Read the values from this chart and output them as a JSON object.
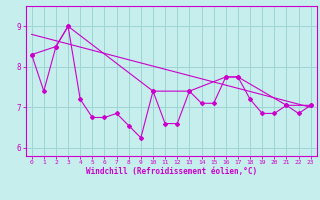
{
  "xlabel": "Windchill (Refroidissement éolien,°C)",
  "xlim": [
    -0.5,
    23.5
  ],
  "ylim": [
    5.8,
    9.5
  ],
  "yticks": [
    6,
    7,
    8,
    9
  ],
  "xticks": [
    0,
    1,
    2,
    3,
    4,
    5,
    6,
    7,
    8,
    9,
    10,
    11,
    12,
    13,
    14,
    15,
    16,
    17,
    18,
    19,
    20,
    21,
    22,
    23
  ],
  "bg_color": "#c5eeed",
  "line_color": "#cc00cc",
  "grid_color": "#9dd4d4",
  "line1": {
    "x": [
      0,
      1,
      2,
      3,
      4,
      5,
      6,
      7,
      8,
      9,
      10,
      11,
      12,
      13,
      14,
      15,
      16,
      17,
      18,
      19,
      20,
      21,
      22,
      23
    ],
    "y": [
      8.3,
      7.4,
      8.5,
      9.0,
      7.2,
      6.75,
      6.75,
      6.85,
      6.55,
      6.25,
      7.4,
      6.6,
      6.6,
      7.4,
      7.1,
      7.1,
      7.75,
      7.75,
      7.2,
      6.85,
      6.85,
      7.05,
      6.85,
      7.05
    ]
  },
  "line2": {
    "x": [
      0,
      2,
      3,
      10,
      13,
      16,
      17,
      21,
      23
    ],
    "y": [
      8.3,
      8.5,
      9.0,
      7.4,
      7.4,
      7.75,
      7.75,
      7.05,
      7.05
    ]
  },
  "line3": {
    "x": [
      0,
      23
    ],
    "y": [
      8.8,
      7.0
    ]
  }
}
